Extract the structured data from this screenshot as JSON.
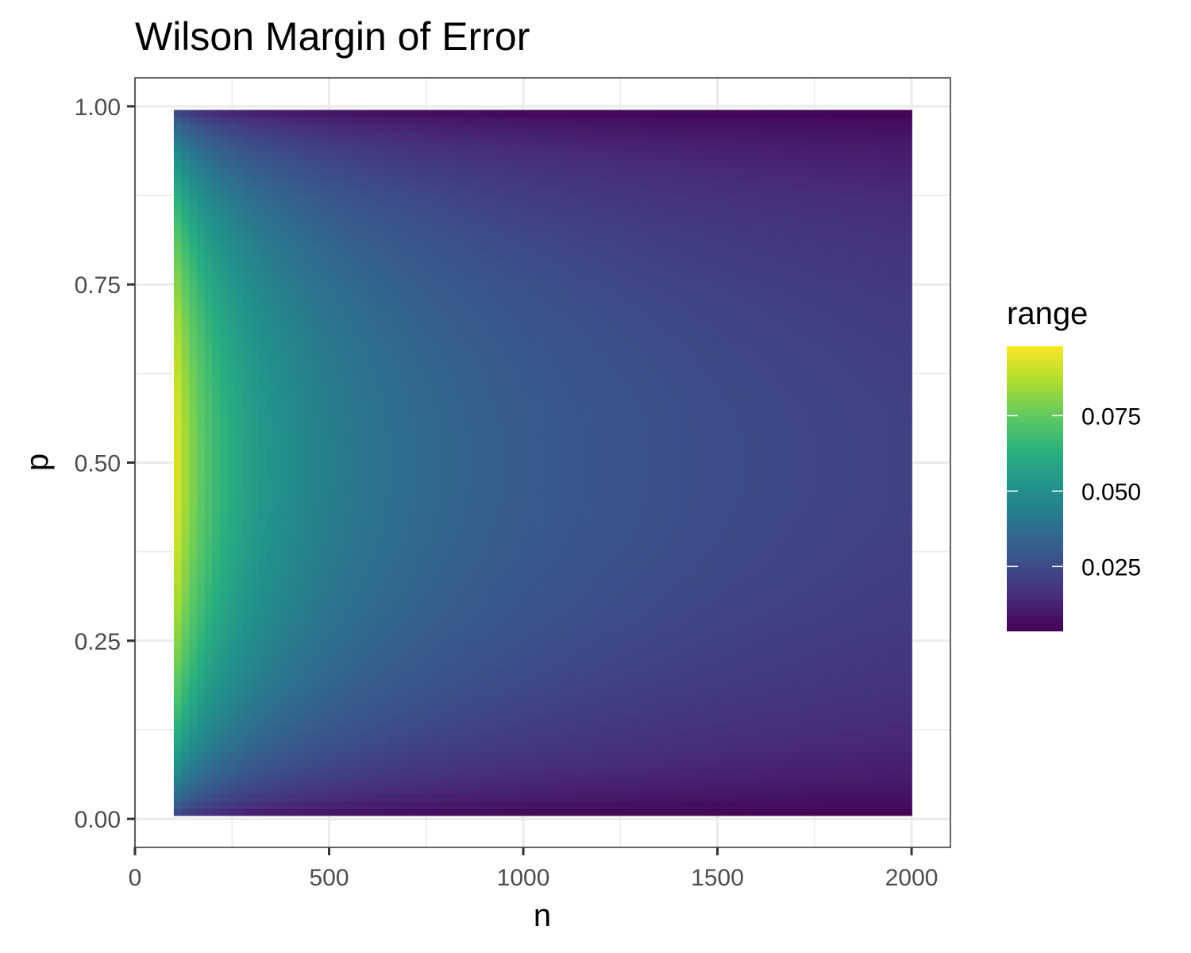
{
  "chart_data": {
    "type": "heatmap",
    "title": "Wilson Margin of Error",
    "xlabel": "n",
    "ylabel": "p",
    "xlim": [
      0,
      2100
    ],
    "ylim": [
      -0.04,
      1.04
    ],
    "x_ticks": [
      0,
      500,
      1000,
      1500,
      2000
    ],
    "x_tick_labels": [
      "0",
      "500",
      "1000",
      "1500",
      "2000"
    ],
    "y_ticks": [
      0,
      0.25,
      0.5,
      0.75,
      1
    ],
    "y_tick_labels": [
      "0.00",
      "0.25",
      "0.50",
      "0.75",
      "1.00"
    ],
    "grid": true,
    "x_domain": [
      100,
      2000
    ],
    "y_domain": [
      0.005,
      0.995
    ],
    "z_metric": "Wilson interval half-width (95%)",
    "colorscale": "viridis",
    "legend": {
      "title": "range",
      "position": "right",
      "range": [
        0.0035,
        0.098
      ],
      "ticks": [
        0.025,
        0.05,
        0.075
      ],
      "tick_labels": [
        "0.025",
        "0.050",
        "0.075"
      ]
    }
  }
}
